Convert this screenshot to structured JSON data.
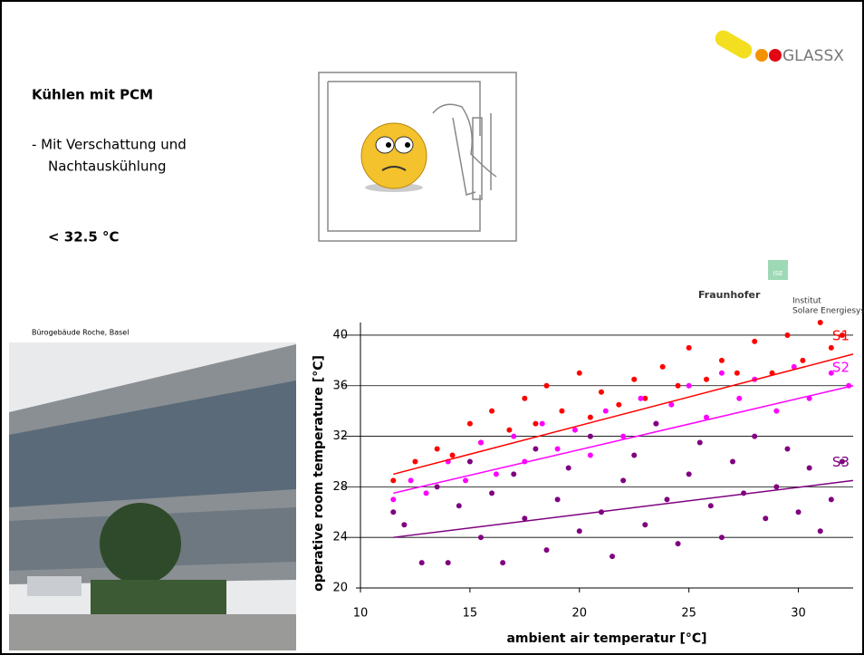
{
  "slide": {
    "heading": "Kühlen mit PCM",
    "bullet_line_1": "- Mit Verschattung und",
    "bullet_line_2": "Nachtauskühlung",
    "limit": "< 32.5 °C",
    "photo_caption": "Bürogebäude Roche, Basel",
    "logo": "GLASSX",
    "ise_badge": "ISE",
    "fraunhofer": "Fraunhofer",
    "institut": "Institut",
    "institut_name": "Solare Energiesysteme"
  },
  "chart_data": {
    "type": "scatter",
    "x_label": "ambient air temperatur [°C]",
    "y_label": "operative room temperature [°C]",
    "xlim": [
      10,
      32.5
    ],
    "ylim": [
      20,
      41
    ],
    "xticks": [
      10,
      15,
      20,
      25,
      30
    ],
    "yticks": [
      20,
      24,
      28,
      32,
      36,
      40
    ],
    "grid": true,
    "series": [
      {
        "name": "S1",
        "color": "#ff0000",
        "x": [
          11.5,
          12.5,
          13.5,
          14.2,
          15,
          15.5,
          16,
          16.8,
          17.5,
          18,
          18.5,
          19.2,
          20,
          20.5,
          21,
          21.8,
          22.5,
          23,
          23.8,
          24.5,
          25,
          25.8,
          26.5,
          27.2,
          28,
          28.8,
          29.5,
          30.2,
          31,
          31.5,
          32
        ],
        "values": [
          28.5,
          30,
          31,
          30.5,
          33,
          31.5,
          34,
          32.5,
          35,
          33,
          36,
          34,
          37,
          33.5,
          35.5,
          34.5,
          36.5,
          35,
          37.5,
          36,
          39,
          36.5,
          38,
          37,
          39.5,
          37,
          40,
          38,
          41,
          39,
          40
        ],
        "trend": {
          "x": [
            11.5,
            32.5
          ],
          "values": [
            29,
            38.5
          ]
        }
      },
      {
        "name": "S2",
        "color": "#ff00ff",
        "x": [
          11.5,
          12.3,
          13,
          14,
          14.8,
          15.5,
          16.2,
          17,
          17.5,
          18.3,
          19,
          19.8,
          20.5,
          21.2,
          22,
          22.8,
          23.5,
          24.2,
          25,
          25.8,
          26.5,
          27.3,
          28,
          29,
          29.8,
          30.5,
          31.5,
          32.3
        ],
        "values": [
          27,
          28.5,
          27.5,
          30,
          28.5,
          31.5,
          29,
          32,
          30,
          33,
          31,
          32.5,
          30.5,
          34,
          32,
          35,
          33,
          34.5,
          36,
          33.5,
          37,
          35,
          36.5,
          34,
          37.5,
          35,
          37,
          36
        ],
        "trend": {
          "x": [
            11.5,
            32.5
          ],
          "values": [
            27.5,
            36
          ]
        }
      },
      {
        "name": "S3",
        "color": "#800080",
        "x": [
          11.5,
          12,
          12.8,
          13.5,
          14,
          14.5,
          15,
          15.5,
          16,
          16.5,
          17,
          17.5,
          18,
          18.5,
          19,
          19.5,
          20,
          20.5,
          21,
          21.5,
          22,
          22.5,
          23,
          23.5,
          24,
          24.5,
          25,
          25.5,
          26,
          26.5,
          27,
          27.5,
          28,
          28.5,
          29,
          29.5,
          30,
          30.5,
          31,
          31.5,
          32
        ],
        "values": [
          26,
          25,
          22,
          28,
          22,
          26.5,
          30,
          24,
          27.5,
          22,
          29,
          25.5,
          31,
          23,
          27,
          29.5,
          24.5,
          32,
          26,
          22.5,
          28.5,
          30.5,
          25,
          33,
          27,
          23.5,
          29,
          31.5,
          26.5,
          24,
          30,
          27.5,
          32,
          25.5,
          28,
          31,
          26,
          29.5,
          24.5,
          27,
          30
        ],
        "trend": {
          "x": [
            11.5,
            32.5
          ],
          "values": [
            24,
            28.5
          ]
        }
      }
    ]
  }
}
